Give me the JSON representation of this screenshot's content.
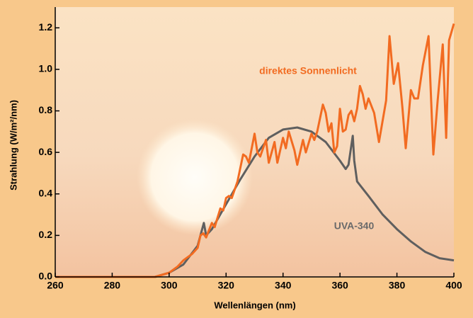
{
  "chart_data": {
    "type": "line",
    "xlabel": "Wellenlängen (nm)",
    "ylabel": "Strahlung (W/m²/nm)",
    "xlim": [
      260,
      400
    ],
    "xticks": [
      260,
      280,
      300,
      320,
      340,
      360,
      380,
      400
    ],
    "ylim": [
      0,
      1.3
    ],
    "yticks": [
      {
        "value": 0,
        "label": "0.0"
      },
      0.2,
      0.4,
      0.6,
      0.8,
      {
        "value": 1,
        "label": "1.0"
      },
      1.2
    ],
    "series": [
      {
        "name": "direktes Sonnenlicht",
        "color": "#f26b21",
        "x": [
          260,
          295,
          300,
          303,
          305,
          308,
          310,
          311,
          312,
          313,
          315,
          316,
          318,
          319,
          320,
          321,
          322,
          324,
          326,
          327,
          328,
          330,
          331,
          332,
          334,
          335,
          337,
          338,
          340,
          341,
          342,
          344,
          345,
          347,
          348,
          350,
          351,
          352,
          354,
          355,
          356,
          357,
          358,
          359,
          360,
          361,
          362,
          363,
          364,
          365,
          366,
          367,
          368,
          369,
          370,
          372,
          373.7,
          376.2,
          377.4,
          378.9,
          380.4,
          381.9,
          383.1,
          384.9,
          386.1,
          387.4,
          389.1,
          391.1,
          392.8,
          394.3,
          396.1,
          397.3,
          398.3,
          400
        ],
        "values": [
          0,
          0,
          0.02,
          0.05,
          0.08,
          0.11,
          0.14,
          0.2,
          0.21,
          0.19,
          0.26,
          0.24,
          0.33,
          0.32,
          0.38,
          0.39,
          0.38,
          0.46,
          0.59,
          0.58,
          0.55,
          0.69,
          0.6,
          0.58,
          0.66,
          0.55,
          0.65,
          0.55,
          0.67,
          0.62,
          0.7,
          0.61,
          0.54,
          0.66,
          0.6,
          0.69,
          0.66,
          0.7,
          0.83,
          0.79,
          0.7,
          0.74,
          0.6,
          0.63,
          0.81,
          0.7,
          0.71,
          0.78,
          0.8,
          0.75,
          0.81,
          0.92,
          0.88,
          0.81,
          0.86,
          0.79,
          0.65,
          0.85,
          1.16,
          0.93,
          1.03,
          0.82,
          0.62,
          0.9,
          0.86,
          0.86,
          1.02,
          1.16,
          0.59,
          0.85,
          1.12,
          0.67,
          1.14,
          1.22
        ]
      },
      {
        "name": "UVA-340",
        "color": "#5f5f5f",
        "x": [
          260,
          295,
          300,
          305,
          310,
          312.2,
          313,
          315,
          320,
          325,
          330,
          335,
          340,
          345,
          350,
          355,
          360,
          362,
          363,
          364.5,
          365,
          366,
          370,
          375,
          380,
          385,
          390,
          395,
          400
        ],
        "values": [
          0,
          0,
          0.02,
          0.06,
          0.15,
          0.26,
          0.2,
          0.23,
          0.35,
          0.47,
          0.58,
          0.67,
          0.71,
          0.72,
          0.7,
          0.65,
          0.56,
          0.52,
          0.54,
          0.68,
          0.56,
          0.46,
          0.39,
          0.3,
          0.23,
          0.17,
          0.12,
          0.09,
          0.08
        ]
      }
    ]
  }
}
